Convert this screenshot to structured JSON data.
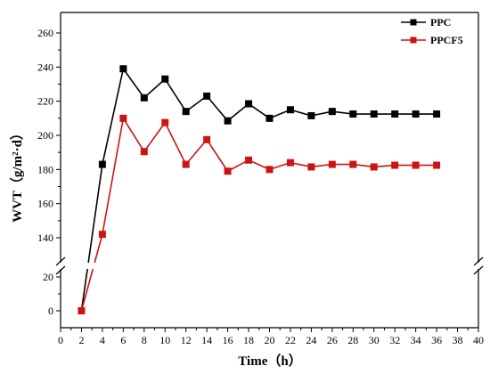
{
  "chart_data": {
    "type": "line",
    "xlabel": "Time（h）",
    "ylabel": "WVT（g/m²·d）",
    "xlim": [
      0,
      40
    ],
    "x_ticks": [
      0,
      2,
      4,
      6,
      8,
      10,
      12,
      14,
      16,
      18,
      20,
      22,
      24,
      26,
      28,
      30,
      32,
      34,
      36,
      38,
      40
    ],
    "y_axis_break": {
      "lower_range": [
        -10,
        25
      ],
      "upper_range": [
        125,
        270
      ]
    },
    "y_ticks_lower": [
      0,
      20
    ],
    "y_ticks_upper": [
      140,
      160,
      180,
      200,
      220,
      240,
      260
    ],
    "grid": false,
    "legend_position": "top-right",
    "x": [
      2,
      4,
      6,
      8,
      10,
      12,
      14,
      16,
      18,
      20,
      22,
      24,
      26,
      28,
      30,
      32,
      34,
      36
    ],
    "series": [
      {
        "name": "PPC",
        "color": "#000000",
        "marker": "square",
        "values": [
          0,
          183,
          239,
          222,
          233,
          214,
          223,
          208.5,
          218.5,
          210,
          215,
          211.5,
          214,
          212.5,
          212.5,
          212.5,
          212.5,
          212.5
        ]
      },
      {
        "name": "PPCF5",
        "color": "#cc1414",
        "marker": "square",
        "values": [
          0,
          142,
          210,
          190.5,
          207.5,
          183,
          197.5,
          179,
          185.5,
          180,
          184,
          181.5,
          183,
          183,
          181.5,
          182.5,
          182.5,
          182.5
        ]
      }
    ]
  }
}
